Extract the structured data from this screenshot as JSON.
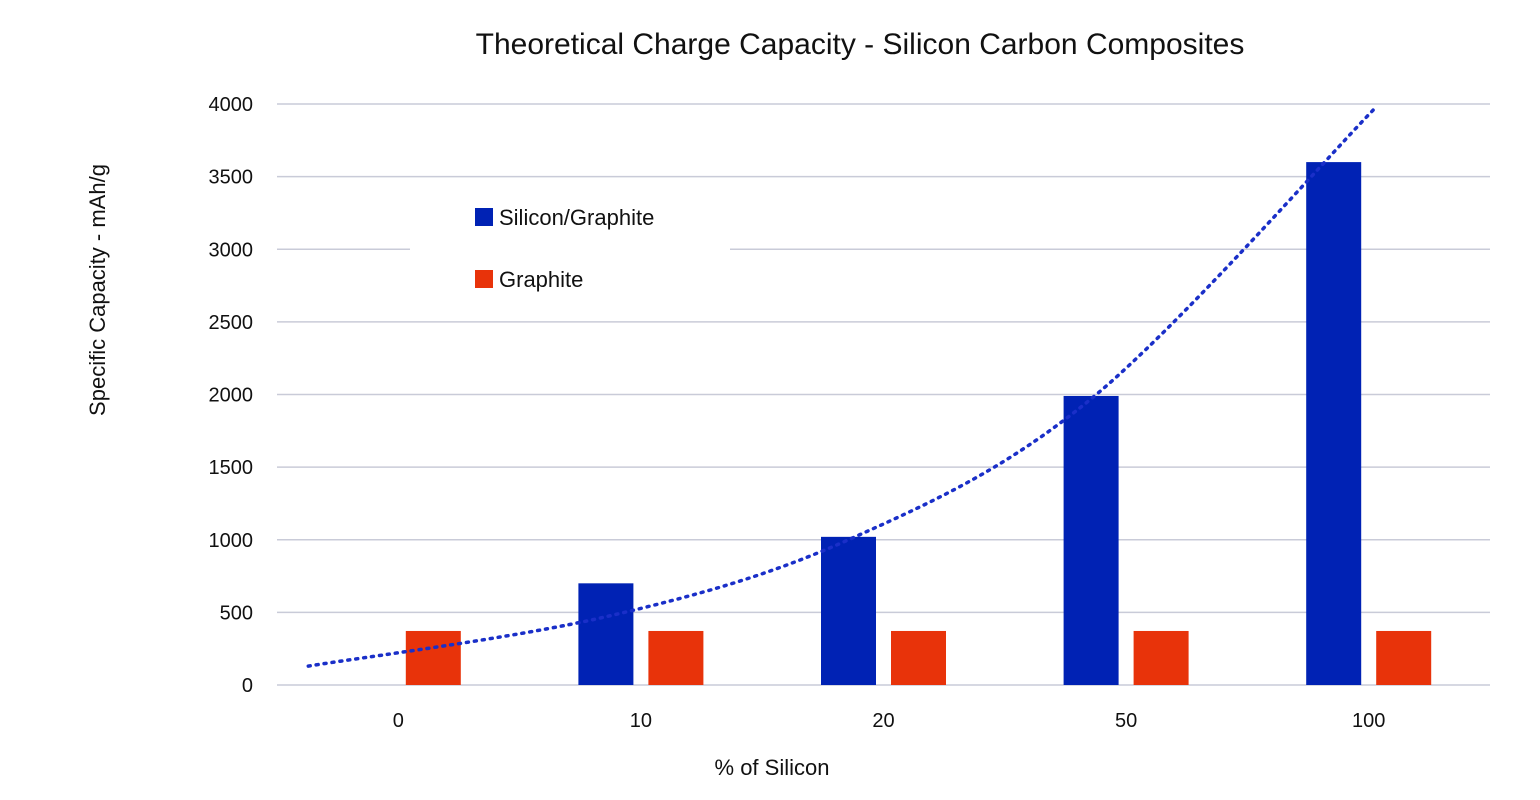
{
  "chart_data": {
    "type": "bar",
    "title": "Theoretical Charge Capacity - Silicon Carbon Composites",
    "xlabel": "% of Silicon",
    "ylabel": "Specific Capacity - mAh/g",
    "categories": [
      "0",
      "10",
      "20",
      "50",
      "100"
    ],
    "series": [
      {
        "name": "Silicon/Graphite",
        "color": "#0022b4",
        "values": [
          0,
          700,
          1020,
          1990,
          3600
        ]
      },
      {
        "name": "Graphite",
        "color": "#e8330a",
        "values": [
          372,
          372,
          372,
          372,
          372
        ]
      }
    ],
    "ylim": [
      0,
      4000
    ],
    "yticks": [
      0,
      500,
      1000,
      1500,
      2000,
      2500,
      3000,
      3500,
      4000
    ],
    "grid": true,
    "legend_position": "top-left inside plot",
    "trendline": {
      "series": "Silicon/Graphite",
      "style": "dotted",
      "color": "#1a2fc8",
      "values": [
        130,
        470,
        1000,
        1970,
        3480
      ]
    }
  }
}
